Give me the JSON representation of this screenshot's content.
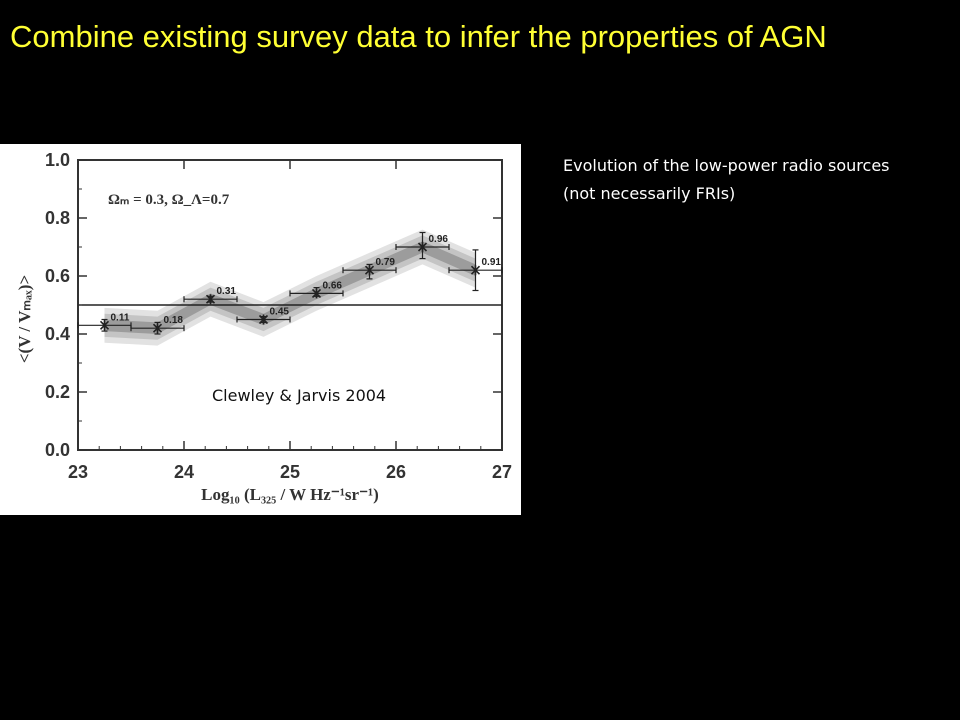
{
  "slide": {
    "title": "Combine existing survey data to infer the properties of AGN",
    "note": "Evolution of the low-power radio sources (not necessarily FRIs)"
  },
  "chart_data": {
    "type": "scatter",
    "xlabel": "Log₁₀ (L₃₂₅ / W Hz⁻¹sr⁻¹)",
    "ylabel": "<(V / Vₘₐₓ)>",
    "xlim": [
      23,
      27
    ],
    "ylim": [
      0,
      1
    ],
    "xticks": [
      "23",
      "24",
      "25",
      "26",
      "27"
    ],
    "yticks": [
      "0.0",
      "0.2",
      "0.4",
      "0.6",
      "0.8",
      "1.0"
    ],
    "annotation": "Ωₘ = 0.3,  Ω_Λ=0.7",
    "credit": "Clewley & Jarvis 2004",
    "reference_line": 0.5,
    "points": [
      {
        "x": 23.25,
        "y": 0.43,
        "xerr_low": 23.0,
        "xerr_high": 23.5,
        "yerr_low": 0.41,
        "yerr_high": 0.45,
        "label": "0.11"
      },
      {
        "x": 23.75,
        "y": 0.42,
        "xerr_low": 23.5,
        "xerr_high": 24.0,
        "yerr_low": 0.4,
        "yerr_high": 0.44,
        "label": "0.18"
      },
      {
        "x": 24.25,
        "y": 0.52,
        "xerr_low": 24.0,
        "xerr_high": 24.5,
        "yerr_low": 0.51,
        "yerr_high": 0.53,
        "label": "0.31"
      },
      {
        "x": 24.75,
        "y": 0.45,
        "xerr_low": 24.5,
        "xerr_high": 25.0,
        "yerr_low": 0.44,
        "yerr_high": 0.46,
        "label": "0.45"
      },
      {
        "x": 25.25,
        "y": 0.54,
        "xerr_low": 25.0,
        "xerr_high": 25.5,
        "yerr_low": 0.53,
        "yerr_high": 0.56,
        "label": "0.66"
      },
      {
        "x": 25.75,
        "y": 0.62,
        "xerr_low": 25.5,
        "xerr_high": 26.0,
        "yerr_low": 0.59,
        "yerr_high": 0.64,
        "label": "0.79"
      },
      {
        "x": 26.25,
        "y": 0.7,
        "xerr_low": 26.0,
        "xerr_high": 26.5,
        "yerr_low": 0.66,
        "yerr_high": 0.75,
        "label": "0.96"
      },
      {
        "x": 26.75,
        "y": 0.62,
        "xerr_low": 26.5,
        "xerr_high": 27.0,
        "yerr_low": 0.55,
        "yerr_high": 0.69,
        "label": "0.91"
      }
    ],
    "colors": {
      "band_outer": "#e2e2e2",
      "band_mid": "#c4c4c4",
      "band_inner": "#9c9c9c",
      "marker": "#222222"
    }
  }
}
